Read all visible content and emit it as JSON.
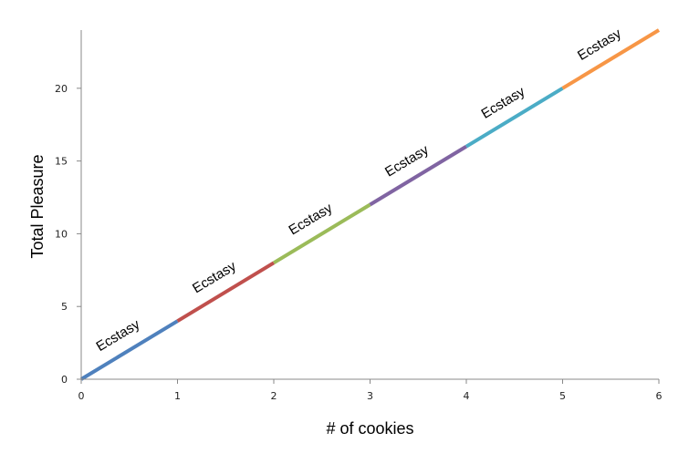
{
  "chart_data": {
    "type": "line",
    "xlabel": "# of cookies",
    "ylabel": "Total Pleasure",
    "xlim": [
      0,
      6
    ],
    "ylim": [
      0,
      24
    ],
    "x_ticks": [
      0,
      1,
      2,
      3,
      4,
      5,
      6
    ],
    "y_ticks": [
      0,
      5,
      10,
      15,
      20
    ],
    "grid": false,
    "series": [
      {
        "x": [
          0,
          1
        ],
        "y": [
          0,
          4
        ],
        "color": "#4f81bd"
      },
      {
        "x": [
          1,
          2
        ],
        "y": [
          4,
          8
        ],
        "color": "#c0504d"
      },
      {
        "x": [
          2,
          3
        ],
        "y": [
          8,
          12
        ],
        "color": "#9bbb59"
      },
      {
        "x": [
          3,
          4
        ],
        "y": [
          12,
          16
        ],
        "color": "#8064a2"
      },
      {
        "x": [
          4,
          5
        ],
        "y": [
          16,
          20
        ],
        "color": "#4bacc6"
      },
      {
        "x": [
          5,
          6
        ],
        "y": [
          20,
          24
        ],
        "color": "#f79646"
      }
    ],
    "annotations": [
      "Ecstasy",
      "Ecstasy",
      "Ecstasy",
      "Ecstasy",
      "Ecstasy",
      "Ecstasy"
    ]
  }
}
